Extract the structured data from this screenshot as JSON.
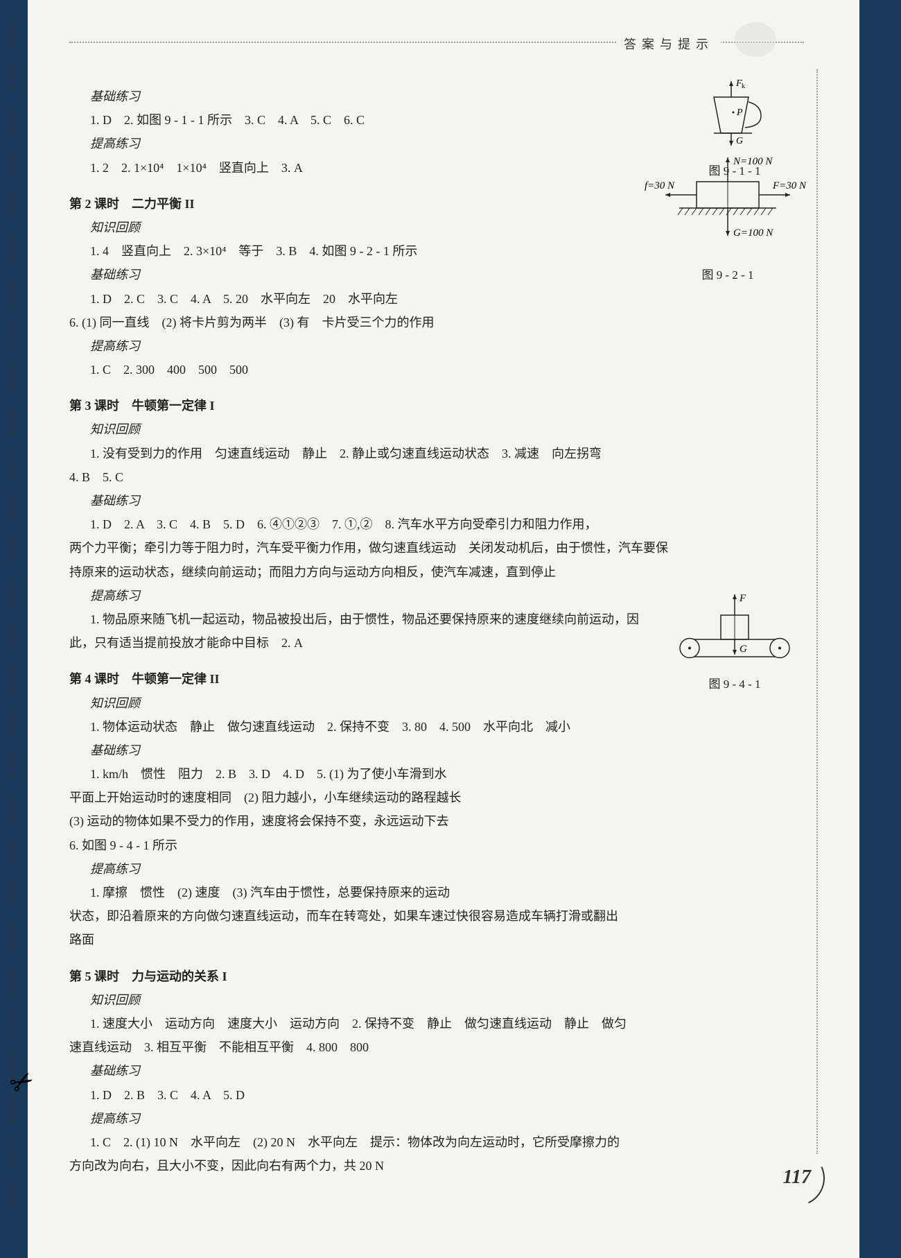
{
  "header": {
    "title": "答案与提示"
  },
  "sections": [
    {
      "subsections": [
        {
          "title": "基础练习",
          "lines": [
            "1. D　2. 如图 9 - 1 - 1 所示　3. C　4. A　5. C　6. C"
          ]
        },
        {
          "title": "提高练习",
          "lines": [
            "1. 2　2. 1×10⁴　1×10⁴　竖直向上　3. A"
          ]
        }
      ]
    },
    {
      "title": "第 2 课时　二力平衡 II",
      "subsections": [
        {
          "title": "知识回顾",
          "lines": [
            "1. 4　竖直向上　2. 3×10⁴　等于　3. B　4. 如图 9 - 2 - 1 所示"
          ]
        },
        {
          "title": "基础练习",
          "lines": [
            "1. D　2. C　3. C　4. A　5. 20　水平向左　20　水平向左",
            "6. (1) 同一直线　(2) 将卡片剪为两半　(3) 有　卡片受三个力的作用"
          ]
        },
        {
          "title": "提高练习",
          "lines": [
            "1. C　2. 300　400　500　500"
          ]
        }
      ]
    },
    {
      "title": "第 3 课时　牛顿第一定律 I",
      "subsections": [
        {
          "title": "知识回顾",
          "lines": [
            "1. 没有受到力的作用　匀速直线运动　静止　2. 静止或匀速直线运动状态　3. 减速　向左拐弯",
            "4. B　5. C"
          ]
        },
        {
          "title": "基础练习",
          "lines": [
            "1. D　2. A　3. C　4. B　5. D　6. ④①②③　7. ①,②　8. 汽车水平方向受牵引力和阻力作用，",
            "两个力平衡；牵引力等于阻力时，汽车受平衡力作用，做匀速直线运动　关闭发动机后，由于惯性，汽车要保",
            "持原来的运动状态，继续向前运动；而阻力方向与运动方向相反，使汽车减速，直到停止"
          ]
        },
        {
          "title": "提高练习",
          "lines": [
            "1. 物品原来随飞机一起运动，物品被投出后，由于惯性，物品还要保持原来的速度继续向前运动，因",
            "此，只有适当提前投放才能命中目标　2. A"
          ]
        }
      ]
    },
    {
      "title": "第 4 课时　牛顿第一定律 II",
      "subsections": [
        {
          "title": "知识回顾",
          "lines": [
            "1. 物体运动状态　静止　做匀速直线运动　2. 保持不变　3. 80　4. 500　水平向北　减小"
          ]
        },
        {
          "title": "基础练习",
          "lines": [
            "1. km/h　惯性　阻力　2. B　3. D　4. D　5. (1) 为了使小车滑到水",
            "平面上开始运动时的速度相同　(2) 阻力越小，小车继续运动的路程越长",
            "(3) 运动的物体如果不受力的作用，速度将会保持不变，永远运动下去",
            "6. 如图 9 - 4 - 1 所示"
          ]
        },
        {
          "title": "提高练习",
          "lines": [
            "1. 摩擦　惯性　(2) 速度　(3) 汽车由于惯性，总要保持原来的运动",
            "状态，即沿着原来的方向做匀速直线运动，而车在转弯处，如果车速过快很容易造成车辆打滑或翻出",
            "路面"
          ]
        }
      ]
    },
    {
      "title": "第 5 课时　力与运动的关系 I",
      "subsections": [
        {
          "title": "知识回顾",
          "lines": [
            "1. 速度大小　运动方向　速度大小　运动方向　2. 保持不变　静止　做匀速直线运动　静止　做匀",
            "速直线运动　3. 相互平衡　不能相互平衡　4. 800　800"
          ]
        },
        {
          "title": "基础练习",
          "lines": [
            "1. D　2. B　3. C　4. A　5. D"
          ]
        },
        {
          "title": "提高练习",
          "lines": [
            "1. C　2. (1) 10 N　水平向左　(2) 20 N　水平向左　提示：物体改为向左运动时，它所受摩擦力的",
            "方向改为向右，且大小不变，因此向右有两个力，共 20 N"
          ]
        }
      ]
    }
  ],
  "figures": {
    "f911": {
      "caption": "图 9 - 1 - 1",
      "labels": {
        "fk": "F_k",
        "p": "P",
        "g": "G"
      },
      "colors": {
        "stroke": "#222",
        "fill": "none"
      }
    },
    "f921": {
      "caption": "图 9 - 2 - 1",
      "labels": {
        "n": "N=100 N",
        "f": "f=30 N",
        "fr": "F=30 N",
        "g": "G=100 N"
      },
      "colors": {
        "stroke": "#222",
        "hatch": "#222"
      }
    },
    "f941": {
      "caption": "图 9 - 4 - 1",
      "labels": {
        "f": "F",
        "g": "G"
      },
      "colors": {
        "stroke": "#222"
      }
    }
  },
  "page_number": "117",
  "binding_marks_count": 28
}
